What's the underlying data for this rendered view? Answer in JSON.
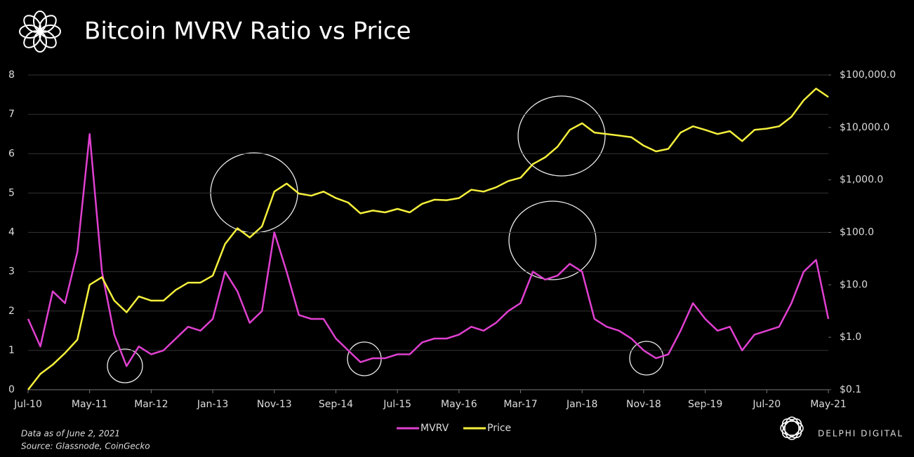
{
  "chart_data": {
    "type": "line",
    "title": "Bitcoin MVRV Ratio vs Price",
    "footnote": "Data as of June 2, 2021",
    "source": "Source: Glassnode, CoinGecko",
    "brand": "DELPHI DIGITAL",
    "categories": [
      "Jul-10",
      null,
      null,
      null,
      null,
      "May-11",
      null,
      null,
      null,
      null,
      "Mar-12",
      null,
      null,
      null,
      null,
      "Jan-13",
      null,
      null,
      null,
      null,
      "Nov-13",
      null,
      null,
      null,
      null,
      "Sep-14",
      null,
      null,
      null,
      null,
      "Jul-15",
      null,
      null,
      null,
      null,
      "May-16",
      null,
      null,
      null,
      null,
      "Mar-17",
      null,
      null,
      null,
      null,
      "Jan-18",
      null,
      null,
      null,
      null,
      "Nov-18",
      null,
      null,
      null,
      null,
      "Sep-19",
      null,
      null,
      null,
      null,
      "Jul-20",
      null,
      null,
      null,
      null,
      "May-21"
    ],
    "series": [
      {
        "name": "MVRV",
        "color": "#e040d0",
        "values": [
          1.8,
          1.1,
          2.5,
          2.2,
          3.5,
          6.5,
          3.0,
          1.4,
          0.6,
          1.1,
          0.9,
          1.0,
          1.3,
          1.6,
          1.5,
          1.8,
          3.0,
          2.5,
          1.7,
          2.0,
          4.0,
          3.0,
          1.9,
          1.8,
          1.8,
          1.3,
          1.0,
          0.7,
          0.8,
          0.8,
          0.9,
          0.9,
          1.2,
          1.3,
          1.3,
          1.4,
          1.6,
          1.5,
          1.7,
          2.0,
          2.2,
          3.0,
          2.8,
          2.9,
          3.2,
          3.0,
          1.8,
          1.6,
          1.5,
          1.3,
          1.0,
          0.8,
          0.9,
          1.5,
          2.2,
          1.8,
          1.5,
          1.6,
          1.0,
          1.4,
          1.5,
          1.6,
          2.2,
          3.0,
          3.3,
          1.8
        ]
      },
      {
        "name": "Price",
        "color": "#f5f03c",
        "axis": "y2",
        "values": [
          0.1,
          0.2,
          0.3,
          0.5,
          0.9,
          10,
          14,
          5,
          3,
          6,
          5,
          5,
          8,
          11,
          11,
          15,
          60,
          120,
          80,
          130,
          600,
          850,
          550,
          500,
          600,
          450,
          370,
          230,
          260,
          240,
          280,
          240,
          350,
          420,
          410,
          450,
          650,
          600,
          720,
          950,
          1100,
          2000,
          2700,
          4300,
          9000,
          12000,
          8000,
          7500,
          7000,
          6500,
          4500,
          3500,
          3900,
          8000,
          10500,
          9000,
          7500,
          8500,
          5500,
          9000,
          9500,
          10500,
          16000,
          33000,
          55000,
          38000
        ]
      }
    ],
    "ylim": [
      0,
      8
    ],
    "yticks": [
      0,
      1,
      2,
      3,
      4,
      5,
      6,
      7,
      8
    ],
    "y2lim": [
      0.1,
      100000
    ],
    "y2log": true,
    "y2ticks": [
      {
        "value": 0.1,
        "label": "$0.1"
      },
      {
        "value": 1,
        "label": "$1.0"
      },
      {
        "value": 10,
        "label": "$10.0"
      },
      {
        "value": 100,
        "label": "$100.0"
      },
      {
        "value": 1000,
        "label": "$1,000.0"
      },
      {
        "value": 10000,
        "label": "$10,000.0"
      },
      {
        "value": 100000,
        "label": "$100,000.0"
      }
    ],
    "grid": true
  }
}
